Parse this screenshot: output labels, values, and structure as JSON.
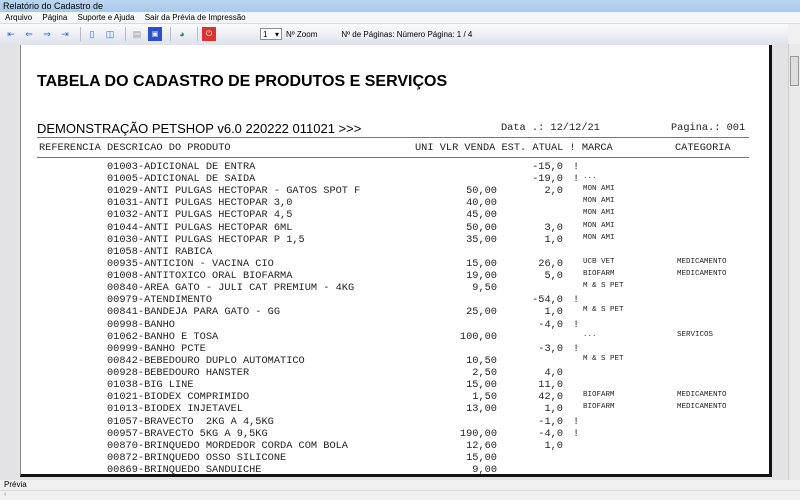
{
  "window": {
    "title": "Relatório do Cadastro de"
  },
  "menu": [
    "Arquivo",
    "Página",
    "Suporte e Ajuda",
    "Sair da Prévia de Impressão"
  ],
  "toolbar": {
    "zoom_value": "1",
    "zoom_label": "Nº Zoom",
    "pages_label": "Nº de Páginas: Número Página: 1 / 4"
  },
  "report": {
    "title": "TABELA DO CADASTRO DE PRODUTOS E SERVIÇOS",
    "company": "DEMONSTRAÇÃO PETSHOP v6.0 220222 011021 >>>",
    "date": "Data .: 12/12/21",
    "page": "Pagina.: 001",
    "headers": {
      "ref": "REFERENCIA DESCRICAO DO PRODUTO",
      "mid": "UNI VLR VENDA EST. ATUAL ! MARCA",
      "cat": "CATEGORIA"
    },
    "rows": [
      {
        "desc": "01003-ADICIONAL DE ENTRA",
        "price": "",
        "stock": "-15,0",
        "flag": "!",
        "brand": "",
        "cat": ""
      },
      {
        "desc": "01005-ADICIONAL DE SAIDA",
        "price": "",
        "stock": "-19,0",
        "flag": "!",
        "brand": "...",
        "cat": ""
      },
      {
        "desc": "01029-ANTI PULGAS HECTOPAR - GATOS SPOT F",
        "price": "50,00",
        "stock": "2,0",
        "flag": "",
        "brand": "MON AMI",
        "cat": ""
      },
      {
        "desc": "01031-ANTI PULGAS HECTOPAR 3,0",
        "price": "40,00",
        "stock": "",
        "flag": "",
        "brand": "MON AMI",
        "cat": ""
      },
      {
        "desc": "01032-ANTI PULGAS HECTOPAR 4,5",
        "price": "45,00",
        "stock": "",
        "flag": "",
        "brand": "MON AMI",
        "cat": ""
      },
      {
        "desc": "01044-ANTI PULGAS HECTOPAR 6ML",
        "price": "50,00",
        "stock": "3,0",
        "flag": "",
        "brand": "MON AMI",
        "cat": ""
      },
      {
        "desc": "01030-ANTI PULGAS HECTOPAR P 1,5",
        "price": "35,00",
        "stock": "1,0",
        "flag": "",
        "brand": "MON AMI",
        "cat": ""
      },
      {
        "desc": "01058-ANTI RABICA",
        "price": "",
        "stock": "",
        "flag": "",
        "brand": "",
        "cat": ""
      },
      {
        "desc": "00935-ANTICION - VACINA CIO",
        "price": "15,00",
        "stock": "26,0",
        "flag": "",
        "brand": "UCB VET",
        "cat": "MEDICAMENTO"
      },
      {
        "desc": "01008-ANTITOXICO ORAL BIOFARMA",
        "price": "19,00",
        "stock": "5,0",
        "flag": "",
        "brand": "BIOFARM",
        "cat": "MEDICAMENTO"
      },
      {
        "desc": "00840-AREA GATO - JULI CAT PREMIUM - 4KG",
        "price": "9,50",
        "stock": "",
        "flag": "",
        "brand": "M & S PET",
        "cat": ""
      },
      {
        "desc": "00979-ATENDIMENTO",
        "price": "",
        "stock": "-54,0",
        "flag": "!",
        "brand": "",
        "cat": ""
      },
      {
        "desc": "00841-BANDEJA PARA GATO - GG",
        "price": "25,00",
        "stock": "1,0",
        "flag": "",
        "brand": "M & S PET",
        "cat": ""
      },
      {
        "desc": "00998-BANHO",
        "price": "",
        "stock": "-4,0",
        "flag": "!",
        "brand": "",
        "cat": ""
      },
      {
        "desc": "01062-BANHO E TOSA",
        "price": "100,00",
        "stock": "",
        "flag": "",
        "brand": "...",
        "cat": "SERVICOS"
      },
      {
        "desc": "00999-BANHO PCTE",
        "price": "",
        "stock": "-3,0",
        "flag": "!",
        "brand": "",
        "cat": ""
      },
      {
        "desc": "00842-BEBEDOURO DUPLO AUTOMATICO",
        "price": "10,50",
        "stock": "",
        "flag": "",
        "brand": "M & S PET",
        "cat": ""
      },
      {
        "desc": "00928-BEBEDOURO HANSTER",
        "price": "2,50",
        "stock": "4,0",
        "flag": "",
        "brand": "",
        "cat": ""
      },
      {
        "desc": "01038-BIG LINE",
        "price": "15,00",
        "stock": "11,0",
        "flag": "",
        "brand": "",
        "cat": ""
      },
      {
        "desc": "01021-BIODEX COMPRIMIDO",
        "price": "1,50",
        "stock": "42,0",
        "flag": "",
        "brand": "BIOFARM",
        "cat": "MEDICAMENTO"
      },
      {
        "desc": "01013-BIODEX INJETAVEL",
        "price": "13,00",
        "stock": "1,0",
        "flag": "",
        "brand": "BIOFARM",
        "cat": "MEDICAMENTO"
      },
      {
        "desc": "01057-BRAVECTO  2KG A 4,5KG",
        "price": "",
        "stock": "-1,0",
        "flag": "!",
        "brand": "",
        "cat": ""
      },
      {
        "desc": "00957-BRAVECTO 5KG A 9,5KG",
        "price": "190,00",
        "stock": "-4,0",
        "flag": "!",
        "brand": "",
        "cat": ""
      },
      {
        "desc": "00870-BRINQUEDO MORDEDOR CORDA COM BOLA",
        "price": "12,60",
        "stock": "1,0",
        "flag": "",
        "brand": "",
        "cat": ""
      },
      {
        "desc": "00872-BRINQUEDO OSSO SILICONE",
        "price": "15,00",
        "stock": "",
        "flag": "",
        "brand": "",
        "cat": ""
      },
      {
        "desc": "00869-BRINQUEDO SANDUICHE",
        "price": "9,00",
        "stock": "",
        "flag": "",
        "brand": "",
        "cat": ""
      }
    ]
  },
  "status": {
    "text": "Prévia"
  }
}
